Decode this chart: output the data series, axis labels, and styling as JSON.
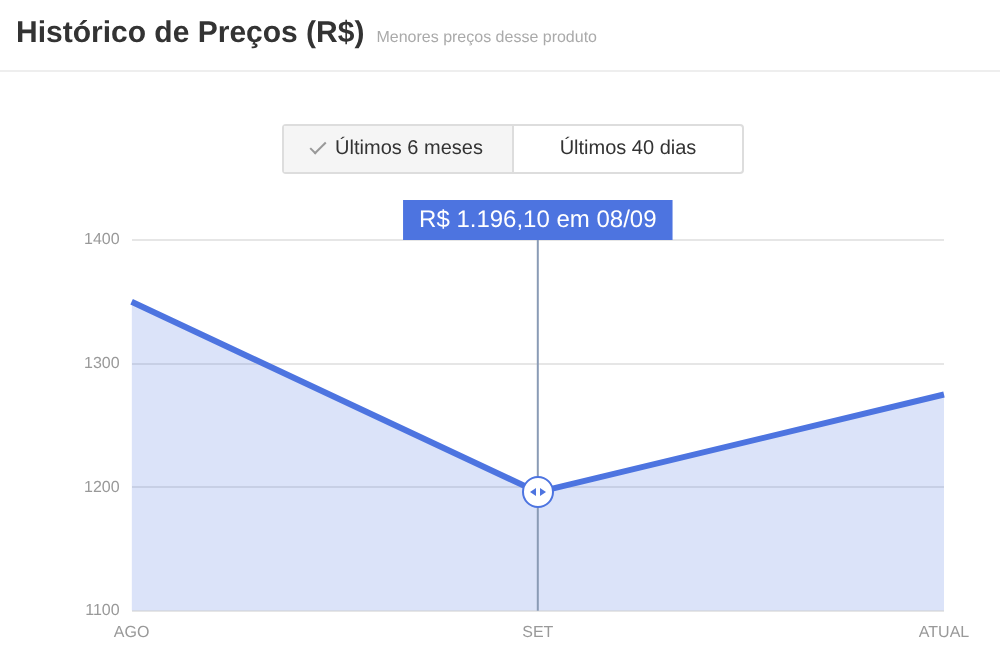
{
  "chart_data": {
    "type": "area",
    "title": "Histórico de Preços (R$)",
    "subtitle": "Menores preços desse produto",
    "categories": [
      "AGO",
      "SET",
      "ATUAL"
    ],
    "series": [
      {
        "color": "#4d74e0",
        "values": [
          1350,
          1196,
          1275
        ]
      }
    ],
    "ref_lines": [
      {
        "axis": "x",
        "value": "SET",
        "color": "#8a9bb5"
      }
    ],
    "ylim": [
      1100,
      1400
    ],
    "yticks": [
      1100,
      1200,
      1300,
      1400
    ],
    "grid": "y",
    "legend": false,
    "marker": "none",
    "annotations": [
      "R$ 1.196,10 em 08/09",
      "Últimos 6 meses",
      "Últimos 40 dias"
    ]
  }
}
